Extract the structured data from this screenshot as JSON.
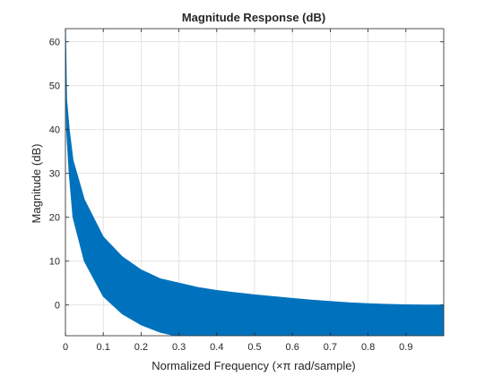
{
  "chart_data": {
    "type": "area",
    "title": "Magnitude Response (dB)",
    "xlabel": "Normalized Frequency (×π rad/sample)",
    "ylabel": "Magnitude (dB)",
    "xlim": [
      0,
      1
    ],
    "ylim": [
      -7,
      63
    ],
    "xticks": [
      0,
      0.1,
      0.2,
      0.3,
      0.4,
      0.5,
      0.6,
      0.7,
      0.8,
      0.9
    ],
    "yticks": [
      0,
      10,
      20,
      30,
      40,
      50,
      60
    ],
    "xtick_labels": [
      "0",
      "0.1",
      "0.2",
      "0.3",
      "0.4",
      "0.5",
      "0.6",
      "0.7",
      "0.8",
      "0.9"
    ],
    "ytick_labels": [
      "0",
      "10",
      "20",
      "30",
      "40",
      "50",
      "60"
    ],
    "grid": true,
    "series_color": "#0072BD",
    "upper_envelope": {
      "x": [
        0,
        0.003,
        0.01,
        0.02,
        0.05,
        0.1,
        0.15,
        0.2,
        0.25,
        0.3,
        0.35,
        0.4,
        0.45,
        0.5,
        0.55,
        0.6,
        0.65,
        0.7,
        0.75,
        0.8,
        0.85,
        0.9,
        0.95,
        1.0
      ],
      "y": [
        63,
        47,
        40,
        33,
        24,
        15.5,
        11,
        8,
        6,
        5,
        4,
        3.3,
        2.8,
        2.3,
        1.9,
        1.5,
        1.1,
        0.8,
        0.5,
        0.3,
        0.15,
        0.05,
        0,
        0
      ]
    },
    "lower_envelope": {
      "x": [
        0,
        0.003,
        0.01,
        0.02,
        0.05,
        0.1,
        0.15,
        0.2,
        0.25,
        0.29,
        0.3,
        1.0
      ],
      "y": [
        63,
        40,
        30,
        20,
        10,
        2,
        -2,
        -4.5,
        -6.2,
        -7,
        -7,
        -7
      ]
    }
  }
}
